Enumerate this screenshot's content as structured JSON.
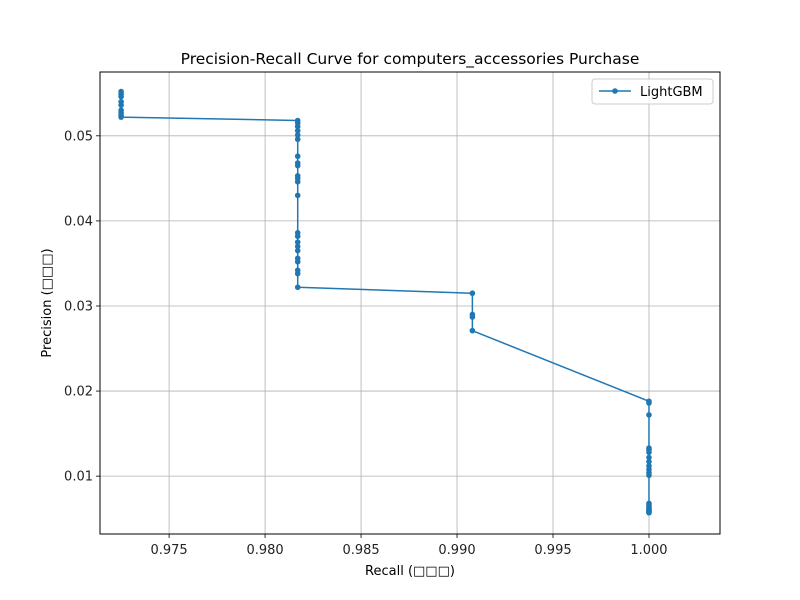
{
  "chart_data": {
    "type": "line",
    "title": "Precision-Recall Curve for computers_accessories Purchase",
    "xlabel": "Recall (□□□)",
    "ylabel": "Precision (□□□)",
    "xlim": [
      0.9714,
      1.0037
    ],
    "ylim": [
      0.0032,
      0.0575
    ],
    "xticks": [
      "0.975",
      "0.980",
      "0.985",
      "0.990",
      "0.995",
      "1.000"
    ],
    "xtick_values": [
      0.975,
      0.98,
      0.985,
      0.99,
      0.995,
      1.0
    ],
    "yticks": [
      "0.01",
      "0.02",
      "0.03",
      "0.04",
      "0.05"
    ],
    "ytick_values": [
      0.01,
      0.02,
      0.03,
      0.04,
      0.05
    ],
    "grid": true,
    "legend_position": "top-right",
    "series": [
      {
        "name": "LightGBM",
        "color": "#1f77b4",
        "marker": "circle",
        "x": [
          0.9725,
          0.9725,
          0.9725,
          0.9725,
          0.9725,
          0.9725,
          0.9725,
          0.9725,
          0.9725,
          0.9817,
          0.9817,
          0.9817,
          0.9817,
          0.9817,
          0.9817,
          0.9817,
          0.9817,
          0.9817,
          0.9817,
          0.9817,
          0.9817,
          0.9817,
          0.9817,
          0.9817,
          0.9817,
          0.9817,
          0.9817,
          0.9817,
          0.9817,
          0.9817,
          0.9817,
          0.9817,
          0.9908,
          0.9908,
          0.9908,
          0.9908,
          1.0,
          1.0,
          1.0,
          1.0,
          1.0,
          1.0,
          1.0,
          1.0,
          1.0,
          1.0,
          1.0,
          1.0,
          1.0,
          1.0,
          1.0,
          1.0,
          1.0,
          1.0,
          1.0,
          1.0,
          1.0,
          1.0
        ],
        "y": [
          0.0552,
          0.0549,
          0.0546,
          0.054,
          0.0536,
          0.053,
          0.0527,
          0.0524,
          0.0522,
          0.0518,
          0.0515,
          0.0511,
          0.0506,
          0.0501,
          0.0496,
          0.0476,
          0.0468,
          0.0465,
          0.0453,
          0.045,
          0.0446,
          0.043,
          0.0386,
          0.0382,
          0.0375,
          0.037,
          0.0365,
          0.0356,
          0.0352,
          0.0342,
          0.0338,
          0.0322,
          0.0315,
          0.029,
          0.0287,
          0.0271,
          0.0188,
          0.0186,
          0.0172,
          0.0133,
          0.0131,
          0.0128,
          0.0122,
          0.0117,
          0.0112,
          0.0108,
          0.0104,
          0.0101,
          0.0068,
          0.0066,
          0.0064,
          0.0062,
          0.0061,
          0.006,
          0.0059,
          0.0058,
          0.0058,
          0.0057
        ]
      }
    ]
  }
}
